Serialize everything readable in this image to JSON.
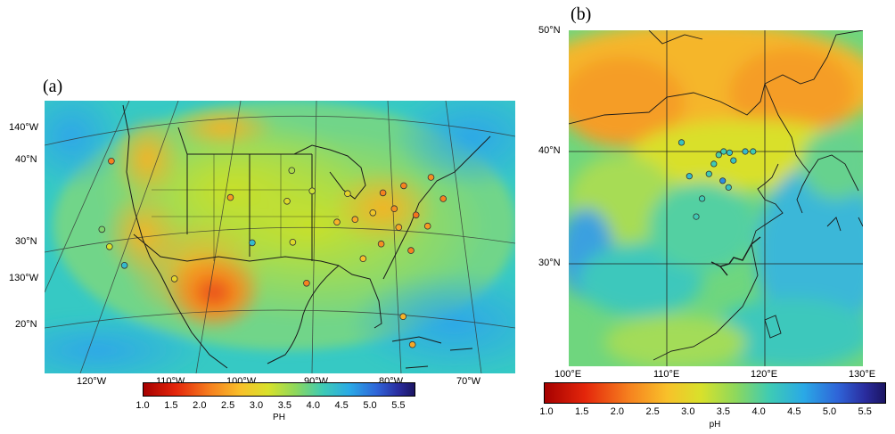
{
  "panel_a": {
    "label": "(a)",
    "lon_labels_bottom": [
      "120°W",
      "110°W",
      "100°W",
      "90°W",
      "80°W",
      "70°W"
    ],
    "left_labels": [
      "140°W",
      "40°N",
      "30°N",
      "130°W",
      "20°N"
    ],
    "colorbar": {
      "ticks": [
        "1.0",
        "1.5",
        "2.0",
        "2.5",
        "3.0",
        "3.5",
        "4.0",
        "4.5",
        "5.0",
        "5.5"
      ],
      "title": "PH"
    },
    "stations": [
      {
        "lon": -123.0,
        "lat": 44.5,
        "ph": 2.2
      },
      {
        "lon": -122.5,
        "lat": 37.8,
        "ph": 3.8
      },
      {
        "lon": -121.0,
        "lat": 36.0,
        "ph": 3.2
      },
      {
        "lon": -118.5,
        "lat": 34.0,
        "ph": 4.4
      },
      {
        "lon": -111.5,
        "lat": 32.3,
        "ph": 3.0
      },
      {
        "lon": -105.0,
        "lat": 40.0,
        "ph": 2.4
      },
      {
        "lon": -101.5,
        "lat": 35.5,
        "ph": 4.4
      },
      {
        "lon": -96.5,
        "lat": 42.5,
        "ph": 3.5
      },
      {
        "lon": -97.0,
        "lat": 39.5,
        "ph": 3.1
      },
      {
        "lon": -96.0,
        "lat": 35.5,
        "ph": 3.1
      },
      {
        "lon": -94.0,
        "lat": 31.5,
        "ph": 2.2
      },
      {
        "lon": -93.5,
        "lat": 40.5,
        "ph": 3.3
      },
      {
        "lon": -90.0,
        "lat": 37.5,
        "ph": 2.6
      },
      {
        "lon": -88.5,
        "lat": 40.3,
        "ph": 3.0
      },
      {
        "lon": -87.5,
        "lat": 37.8,
        "ph": 2.5
      },
      {
        "lon": -86.5,
        "lat": 34.0,
        "ph": 2.7
      },
      {
        "lon": -85.0,
        "lat": 38.5,
        "ph": 2.8
      },
      {
        "lon": -84.0,
        "lat": 35.5,
        "ph": 2.3
      },
      {
        "lon": -83.5,
        "lat": 40.5,
        "ph": 2.2
      },
      {
        "lon": -82.0,
        "lat": 39.0,
        "ph": 2.3
      },
      {
        "lon": -81.5,
        "lat": 37.2,
        "ph": 2.5
      },
      {
        "lon": -80.5,
        "lat": 41.3,
        "ph": 2.2
      },
      {
        "lon": -80.0,
        "lat": 35.0,
        "ph": 2.2
      },
      {
        "lon": -79.0,
        "lat": 38.5,
        "ph": 2.1
      },
      {
        "lon": -77.5,
        "lat": 37.5,
        "ph": 2.4
      },
      {
        "lon": -76.5,
        "lat": 42.3,
        "ph": 2.3
      },
      {
        "lon": -75.0,
        "lat": 40.3,
        "ph": 2.2
      },
      {
        "lon": -81.5,
        "lat": 28.5,
        "ph": 2.6
      },
      {
        "lon": -80.5,
        "lat": 25.8,
        "ph": 2.5
      }
    ]
  },
  "panel_b": {
    "label": "(b)",
    "lat_labels": [
      "50°N",
      "40°N",
      "30°N"
    ],
    "lon_labels": [
      "100°E",
      "110°E",
      "120°E",
      "130°E"
    ],
    "colorbar": {
      "ticks": [
        "1.0",
        "1.5",
        "2.0",
        "2.5",
        "3.0",
        "3.5",
        "4.0",
        "4.5",
        "5.0",
        "5.5"
      ],
      "title": "pH"
    },
    "stations": [
      {
        "lon": 111.5,
        "lat": 40.8,
        "ph": 4.3
      },
      {
        "lon": 115.3,
        "lat": 39.7,
        "ph": 4.1
      },
      {
        "lon": 115.8,
        "lat": 40.0,
        "ph": 4.2
      },
      {
        "lon": 116.4,
        "lat": 39.9,
        "ph": 4.3
      },
      {
        "lon": 116.8,
        "lat": 39.2,
        "ph": 4.3
      },
      {
        "lon": 118.0,
        "lat": 40.0,
        "ph": 4.4
      },
      {
        "lon": 118.8,
        "lat": 40.0,
        "ph": 4.2
      },
      {
        "lon": 114.8,
        "lat": 38.9,
        "ph": 4.2
      },
      {
        "lon": 112.3,
        "lat": 37.8,
        "ph": 4.4
      },
      {
        "lon": 114.3,
        "lat": 38.0,
        "ph": 4.2
      },
      {
        "lon": 115.7,
        "lat": 37.4,
        "ph": 4.8
      },
      {
        "lon": 116.3,
        "lat": 36.8,
        "ph": 4.3
      },
      {
        "lon": 113.6,
        "lat": 35.8,
        "ph": 4.2
      },
      {
        "lon": 113.0,
        "lat": 34.2,
        "ph": 4.2
      }
    ]
  }
}
